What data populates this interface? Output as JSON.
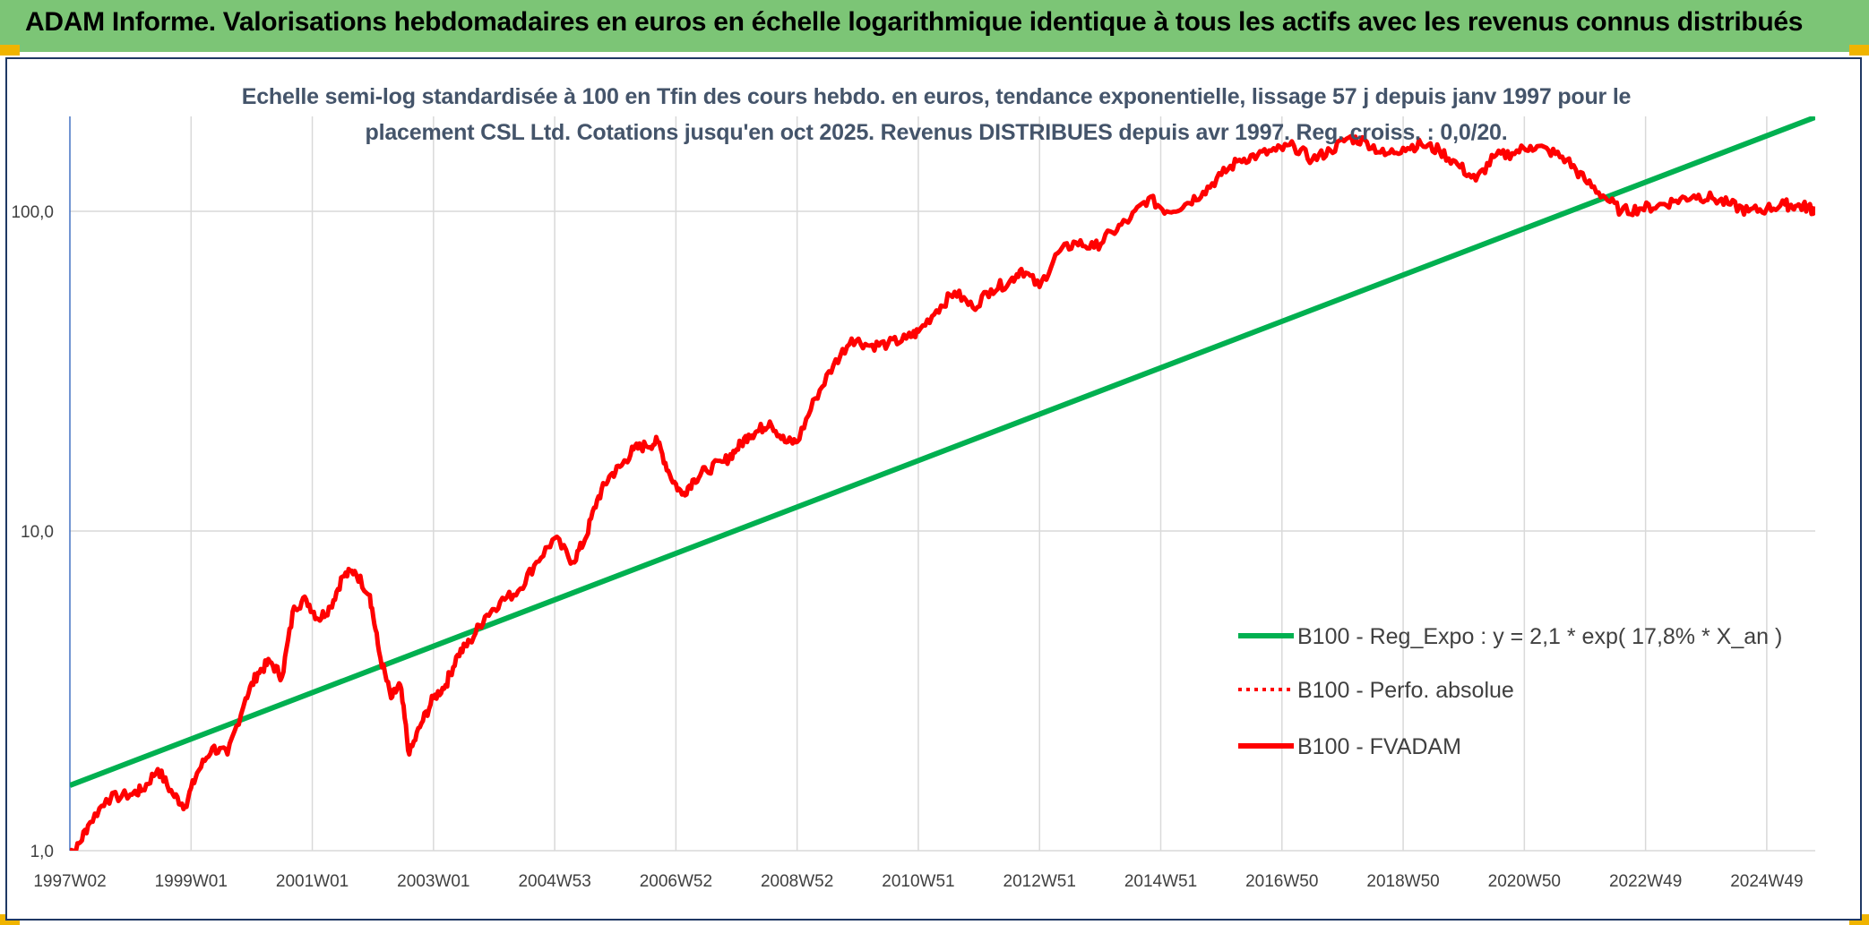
{
  "banner": {
    "title": "ADAM Informe. Valorisations hebdomadaires en euros en échelle logarithmique identique à tous les actifs avec les revenus connus distribués"
  },
  "colors": {
    "banner": "#7cc576",
    "trend": "#00b050",
    "fvadam": "#ff0000",
    "perfo": "#ff0000",
    "grid": "#d9d9d9",
    "corner": "#f0b400"
  },
  "chart_data": {
    "type": "line",
    "title": "Echelle semi-log standardisée à 100 en Tfin des cours hebdo. en euros, tendance exponentielle, lissage 57 j depuis janv 1997 pour le placement CSL Ltd. Cotations jusqu'en oct 2025. Revenus DISTRIBUES depuis avr 1997. Reg. croiss. : 0,0/20.",
    "y_scale": "log",
    "ylim": [
      1,
      200
    ],
    "xlim": [
      1997.0,
      2025.8
    ],
    "grid": true,
    "legend_position": "right",
    "y_ticks": [
      {
        "value": 1,
        "label": "1,0"
      },
      {
        "value": 10,
        "label": "10,0"
      },
      {
        "value": 100,
        "label": "100,0"
      }
    ],
    "x_ticks": [
      {
        "t": 1997.0,
        "label": "1997W02"
      },
      {
        "t": 1999.0,
        "label": "1999W01"
      },
      {
        "t": 2001.0,
        "label": "2001W01"
      },
      {
        "t": 2003.0,
        "label": "2003W01"
      },
      {
        "t": 2005.0,
        "label": "2004W53"
      },
      {
        "t": 2007.0,
        "label": "2006W52"
      },
      {
        "t": 2009.0,
        "label": "2008W52"
      },
      {
        "t": 2011.0,
        "label": "2010W51"
      },
      {
        "t": 2013.0,
        "label": "2012W51"
      },
      {
        "t": 2015.0,
        "label": "2014W51"
      },
      {
        "t": 2017.0,
        "label": "2016W50"
      },
      {
        "t": 2019.0,
        "label": "2018W50"
      },
      {
        "t": 2021.0,
        "label": "2020W50"
      },
      {
        "t": 2023.0,
        "label": "2022W49"
      },
      {
        "t": 2025.0,
        "label": "2024W49"
      }
    ],
    "series": [
      {
        "name": "B100 - Reg_Expo : y = 2,1 * exp( 17,8% *  X_an )",
        "style": "solid-green",
        "x": [
          1997.0,
          2025.8
        ],
        "y": [
          1.6,
          197
        ]
      },
      {
        "name": "B100 - Perfo. absolue",
        "style": "dotted-red",
        "x": [],
        "y": []
      },
      {
        "name": "B100 - FVADAM",
        "style": "solid-red",
        "x": [
          1997.0,
          1997.1,
          1997.3,
          1997.6,
          1998.0,
          1998.2,
          1998.45,
          1998.7,
          1998.9,
          1999.1,
          1999.35,
          1999.6,
          1999.9,
          2000.1,
          2000.3,
          2000.5,
          2000.7,
          2000.9,
          2001.1,
          2001.3,
          2001.5,
          2001.7,
          2001.95,
          2002.1,
          2002.3,
          2002.45,
          2002.6,
          2002.8,
          2003.0,
          2003.2,
          2003.4,
          2003.6,
          2003.85,
          2004.1,
          2004.4,
          2004.7,
          2005.0,
          2005.3,
          2005.5,
          2005.7,
          2005.9,
          2006.1,
          2006.3,
          2006.5,
          2006.7,
          2006.9,
          2007.1,
          2007.3,
          2007.5,
          2007.8,
          2008.0,
          2008.2,
          2008.35,
          2008.55,
          2008.8,
          2009.0,
          2009.3,
          2009.6,
          2009.9,
          2010.2,
          2010.5,
          2010.8,
          2011.0,
          2011.3,
          2011.6,
          2011.9,
          2012.2,
          2012.5,
          2012.7,
          2013.0,
          2013.3,
          2013.6,
          2013.9,
          2014.2,
          2014.5,
          2014.8,
          2015.1,
          2015.4,
          2015.7,
          2016.0,
          2016.3,
          2016.6,
          2016.9,
          2017.2,
          2017.5,
          2017.8,
          2018.1,
          2018.4,
          2018.7,
          2019.0,
          2019.3,
          2019.6,
          2019.9,
          2020.2,
          2020.5,
          2020.8,
          2021.1,
          2021.4,
          2021.7,
          2022.0,
          2022.3,
          2022.6,
          2022.9,
          2023.2,
          2023.5,
          2023.8,
          2024.1,
          2024.4,
          2024.7,
          2025.0,
          2025.3,
          2025.5,
          2025.7,
          2025.8
        ],
        "y": [
          1.0,
          1.0,
          1.2,
          1.45,
          1.5,
          1.55,
          1.8,
          1.5,
          1.38,
          1.75,
          2.1,
          2.0,
          3.0,
          3.6,
          3.9,
          3.5,
          5.8,
          6.1,
          5.3,
          5.8,
          7.2,
          7.5,
          6.3,
          4.2,
          3.0,
          3.3,
          2.0,
          2.5,
          3.0,
          3.3,
          4.1,
          4.5,
          5.4,
          6.0,
          6.5,
          8.0,
          9.5,
          8.0,
          9.4,
          12.5,
          14.8,
          16.0,
          18.0,
          18.5,
          19.0,
          15.0,
          13.0,
          14.5,
          15.5,
          16.5,
          18.0,
          20.0,
          20.5,
          22.0,
          19.0,
          19.0,
          26.0,
          33.0,
          40.0,
          38.0,
          38.5,
          40.0,
          42.0,
          49.0,
          56.0,
          50.0,
          57.0,
          60.0,
          66.0,
          58.0,
          74.0,
          80.0,
          77.0,
          86.0,
          95.0,
          110.0,
          100.0,
          105.0,
          115.0,
          130.0,
          145.0,
          150.0,
          155.0,
          160.0,
          145.0,
          155.0,
          170.0,
          165.0,
          150.0,
          158.0,
          162.0,
          155.0,
          140.0,
          125.0,
          148.0,
          152.0,
          160.0,
          155.0,
          145.0,
          125.0,
          112.0,
          100.0,
          102.0,
          104.0,
          108.0,
          112.0,
          110.0,
          105.0,
          100.0,
          102.0,
          105.0,
          104.0,
          103.0,
          100.0
        ]
      }
    ]
  }
}
